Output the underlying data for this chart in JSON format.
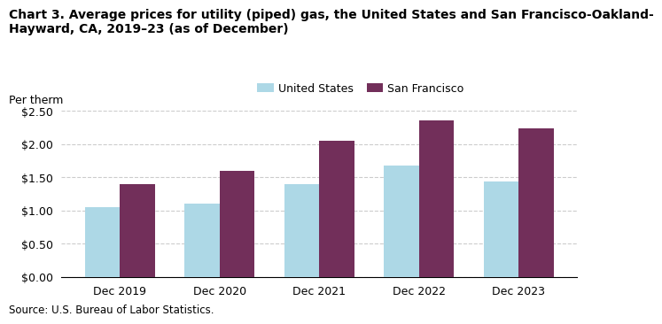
{
  "title_line1": "Chart 3. Average prices for utility (piped) gas, the United States and San Francisco-Oakland-",
  "title_line2": "Hayward, CA, 2019–23 (as of December)",
  "ylabel": "Per therm",
  "source": "Source: U.S. Bureau of Labor Statistics.",
  "categories": [
    "Dec 2019",
    "Dec 2020",
    "Dec 2021",
    "Dec 2022",
    "Dec 2023"
  ],
  "us_values": [
    1.05,
    1.1,
    1.4,
    1.67,
    1.43
  ],
  "sf_values": [
    1.4,
    1.6,
    2.05,
    2.35,
    2.23
  ],
  "us_color": "#add8e6",
  "sf_color": "#722F5A",
  "legend_us": "United States",
  "legend_sf": "San Francisco",
  "ylim": [
    0.0,
    2.5
  ],
  "yticks": [
    0.0,
    0.5,
    1.0,
    1.5,
    2.0,
    2.5
  ],
  "bar_width": 0.35,
  "grid_color": "#cccccc",
  "background_color": "#ffffff",
  "title_fontsize": 10,
  "axis_fontsize": 9,
  "legend_fontsize": 9,
  "source_fontsize": 8.5
}
